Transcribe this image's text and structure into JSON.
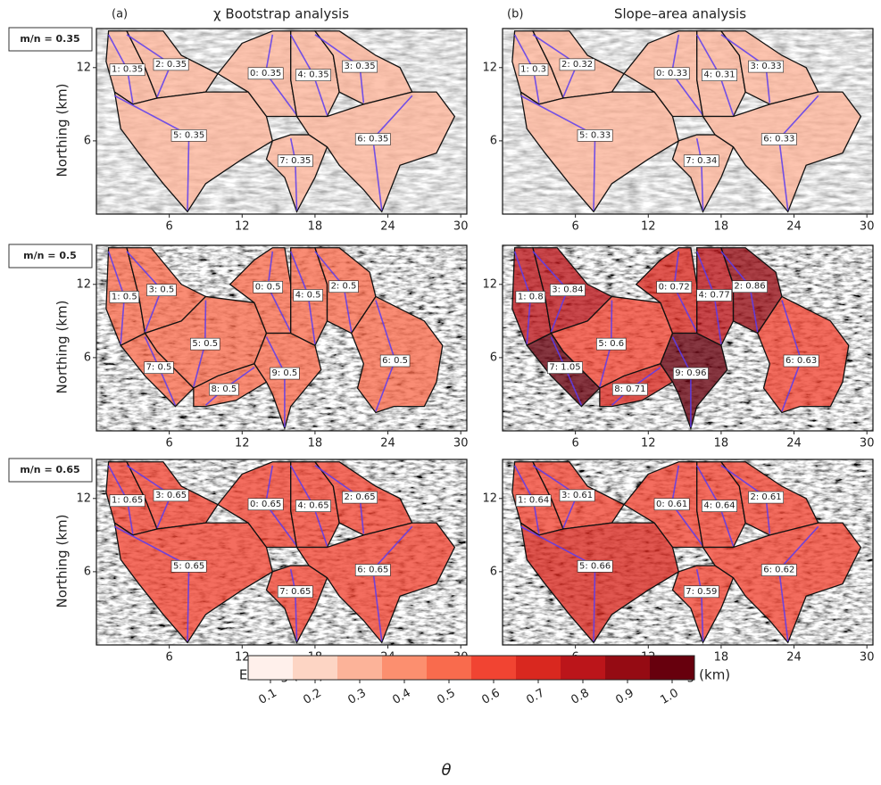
{
  "columns": [
    {
      "letter": "(a)",
      "title": "χ Bootstrap analysis"
    },
    {
      "letter": "(b)",
      "title": "Slope–area analysis"
    }
  ],
  "rows": [
    {
      "label": "m/n = 0.35",
      "panels": [
        {
          "basins": [
            {
              "label": "1: 0.35",
              "value": 0.35
            },
            {
              "label": "2: 0.35",
              "value": 0.35
            },
            {
              "label": "0: 0.35",
              "value": 0.35
            },
            {
              "label": "4: 0.35",
              "value": 0.35
            },
            {
              "label": "3: 0.35",
              "value": 0.35
            },
            {
              "label": "5: 0.35",
              "value": 0.35
            },
            {
              "label": "7: 0.35",
              "value": 0.35
            },
            {
              "label": "6: 0.35",
              "value": 0.35
            }
          ]
        },
        {
          "basins": [
            {
              "label": "1: 0.3",
              "value": 0.3
            },
            {
              "label": "2: 0.32",
              "value": 0.32
            },
            {
              "label": "0: 0.33",
              "value": 0.33
            },
            {
              "label": "4: 0.31",
              "value": 0.31
            },
            {
              "label": "3: 0.33",
              "value": 0.33
            },
            {
              "label": "5: 0.33",
              "value": 0.33
            },
            {
              "label": "7: 0.34",
              "value": 0.34
            },
            {
              "label": "6: 0.33",
              "value": 0.33
            }
          ]
        }
      ]
    },
    {
      "label": "m/n = 0.5",
      "panels": [
        {
          "basins": [
            {
              "label": "1: 0.5",
              "value": 0.5
            },
            {
              "label": "3: 0.5",
              "value": 0.5
            },
            {
              "label": "5: 0.5",
              "value": 0.5
            },
            {
              "label": "7: 0.5",
              "value": 0.5
            },
            {
              "label": "8: 0.5",
              "value": 0.5
            },
            {
              "label": "0: 0.5",
              "value": 0.5
            },
            {
              "label": "9: 0.5",
              "value": 0.5
            },
            {
              "label": "4: 0.5",
              "value": 0.5
            },
            {
              "label": "2: 0.5",
              "value": 0.5
            },
            {
              "label": "6: 0.5",
              "value": 0.5
            }
          ]
        },
        {
          "basins": [
            {
              "label": "1: 0.8",
              "value": 0.8
            },
            {
              "label": "3: 0.84",
              "value": 0.84
            },
            {
              "label": "5: 0.6",
              "value": 0.6
            },
            {
              "label": "7: 1.05",
              "value": 1.05
            },
            {
              "label": "8: 0.71",
              "value": 0.71
            },
            {
              "label": "0: 0.72",
              "value": 0.72
            },
            {
              "label": "9: 0.96",
              "value": 0.96
            },
            {
              "label": "4: 0.77",
              "value": 0.77
            },
            {
              "label": "2: 0.86",
              "value": 0.86
            },
            {
              "label": "6: 0.63",
              "value": 0.63
            }
          ]
        }
      ]
    },
    {
      "label": "m/n = 0.65",
      "panels": [
        {
          "basins": [
            {
              "label": "1: 0.65",
              "value": 0.65
            },
            {
              "label": "3: 0.65",
              "value": 0.65
            },
            {
              "label": "0: 0.65",
              "value": 0.65
            },
            {
              "label": "4: 0.65",
              "value": 0.65
            },
            {
              "label": "2: 0.65",
              "value": 0.65
            },
            {
              "label": "5: 0.65",
              "value": 0.65
            },
            {
              "label": "7: 0.65",
              "value": 0.65
            },
            {
              "label": "6: 0.65",
              "value": 0.65
            }
          ]
        },
        {
          "basins": [
            {
              "label": "1: 0.64",
              "value": 0.64
            },
            {
              "label": "3: 0.61",
              "value": 0.61
            },
            {
              "label": "0: 0.61",
              "value": 0.61
            },
            {
              "label": "4: 0.64",
              "value": 0.64
            },
            {
              "label": "2: 0.61",
              "value": 0.61
            },
            {
              "label": "5: 0.66",
              "value": 0.66
            },
            {
              "label": "7: 0.59",
              "value": 0.59
            },
            {
              "label": "6: 0.62",
              "value": 0.62
            }
          ]
        }
      ]
    }
  ],
  "axes": {
    "xlabel": "Easting (km)",
    "ylabel": "Northing (km)",
    "xlim": [
      0,
      30.5
    ],
    "ylim": [
      0,
      15.2
    ],
    "xticks": [
      6,
      12,
      18,
      24,
      30
    ],
    "yticks": [
      6,
      12
    ]
  },
  "colorbar": {
    "label": "θ",
    "clim": [
      0.05,
      1.05
    ],
    "colors": [
      "#fff0eb",
      "#fdd5c4",
      "#fcb399",
      "#fc8f6f",
      "#f96b4d",
      "#f14432",
      "#d9281f",
      "#bb151a",
      "#950b13",
      "#67000d"
    ],
    "ticks": [
      0.1,
      0.2,
      0.3,
      0.4,
      0.5,
      0.6,
      0.7,
      0.8,
      0.9,
      {
        "value": 1,
        "label": "1.0"
      }
    ]
  }
}
